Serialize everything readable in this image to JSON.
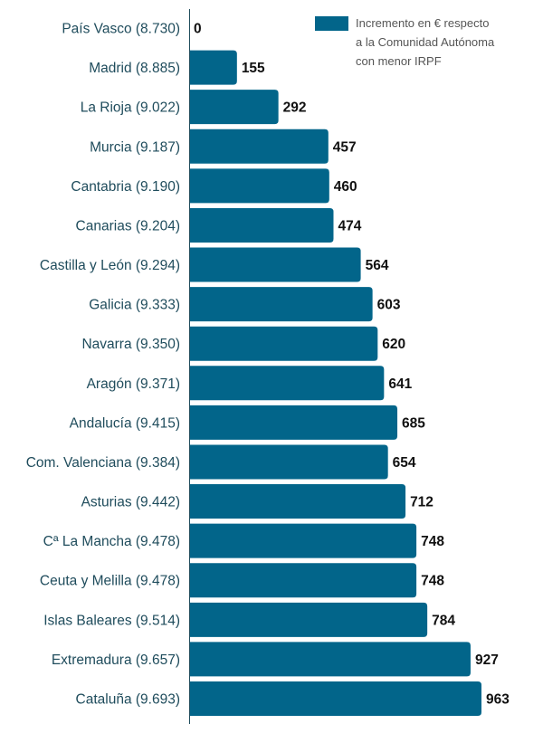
{
  "chart_data": {
    "type": "bar",
    "orientation": "horizontal",
    "categories": [
      "País Vasco (8.730)",
      "Madrid (8.885)",
      "La Rioja (9.022)",
      "Murcia (9.187)",
      "Cantabria (9.190)",
      "Canarias (9.204)",
      "Castilla y León (9.294)",
      "Galicia (9.333)",
      "Navarra (9.350)",
      "Aragón (9.371)",
      "Andalucía (9.415)",
      "Com. Valenciana (9.384)",
      "Asturias (9.442)",
      "Cª La Mancha (9.478)",
      "Ceuta y Melilla (9.478)",
      "Islas Baleares (9.514)",
      "Extremadura (9.657)",
      "Cataluña (9.693)"
    ],
    "series": [
      {
        "name": "Incremento en € respecto a la Comunidad Autónoma con menor IRPF",
        "values": [
          0,
          155,
          292,
          457,
          460,
          474,
          564,
          603,
          620,
          641,
          685,
          654,
          712,
          748,
          748,
          784,
          927,
          963
        ]
      }
    ],
    "legend_lines": [
      "Incremento en € respecto",
      "a la Comunidad Autónoma",
      "con menor IRPF"
    ],
    "legend_position": "top-right",
    "xlim": [
      0,
      963
    ],
    "grid": false,
    "bar_color": "#02658a",
    "label_color": "#1f4c5c"
  }
}
